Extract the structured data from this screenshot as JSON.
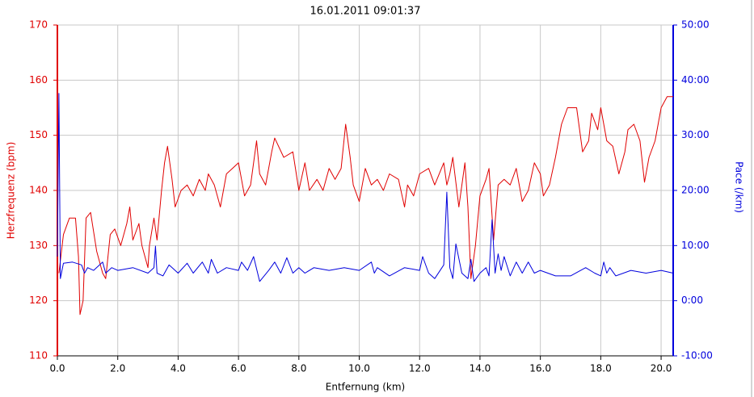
{
  "chart_data": {
    "type": "line",
    "title": "16.01.2011 09:01:37",
    "xlabel": "Entfernung (km)",
    "ylabel": "Herzfrequenz (bpm)",
    "y2label": "Pace (/km)",
    "grid": true,
    "xlim": [
      0,
      20.4
    ],
    "xticks": [
      {
        "value": 0,
        "label": "0.0"
      },
      {
        "value": 2,
        "label": "2.0"
      },
      {
        "value": 4,
        "label": "4.0"
      },
      {
        "value": 6,
        "label": "6.0"
      },
      {
        "value": 8,
        "label": "8.0"
      },
      {
        "value": 10,
        "label": "10.0"
      },
      {
        "value": 12,
        "label": "12.0"
      },
      {
        "value": 14,
        "label": "14.0"
      },
      {
        "value": 16,
        "label": "16.0"
      },
      {
        "value": 18,
        "label": "18.0"
      },
      {
        "value": 20,
        "label": "20.0"
      }
    ],
    "ylim": [
      110,
      170
    ],
    "yticks": [
      110,
      120,
      130,
      140,
      150,
      160,
      170
    ],
    "y2lim": [
      -10,
      50
    ],
    "y2ticks": [
      {
        "value": -10,
        "label": "-10:00"
      },
      {
        "value": 0,
        "label": "0:00"
      },
      {
        "value": 10,
        "label": "10:00"
      },
      {
        "value": 20,
        "label": "20:00"
      },
      {
        "value": 30,
        "label": "30:00"
      },
      {
        "value": 40,
        "label": "40:00"
      },
      {
        "value": 50,
        "label": "50:00"
      }
    ],
    "series": [
      {
        "name": "Herzfrequenz",
        "color": "#e00000",
        "axis": "y",
        "x": [
          0.05,
          0.2,
          0.4,
          0.6,
          0.7,
          0.75,
          0.85,
          0.95,
          1.1,
          1.3,
          1.5,
          1.6,
          1.75,
          1.9,
          2.1,
          2.3,
          2.4,
          2.5,
          2.7,
          2.8,
          3.0,
          3.05,
          3.2,
          3.3,
          3.45,
          3.55,
          3.65,
          3.8,
          3.9,
          4.1,
          4.3,
          4.5,
          4.7,
          4.9,
          5.0,
          5.2,
          5.4,
          5.6,
          5.8,
          6.0,
          6.2,
          6.4,
          6.6,
          6.7,
          6.9,
          7.1,
          7.2,
          7.5,
          7.8,
          8.0,
          8.2,
          8.35,
          8.6,
          8.8,
          9.0,
          9.2,
          9.4,
          9.55,
          9.7,
          9.8,
          10.0,
          10.2,
          10.4,
          10.6,
          10.8,
          11.0,
          11.3,
          11.5,
          11.6,
          11.8,
          12.0,
          12.3,
          12.5,
          12.8,
          12.9,
          13.0,
          13.1,
          13.3,
          13.5,
          13.6,
          13.7,
          13.85,
          14.0,
          14.2,
          14.3,
          14.45,
          14.6,
          14.8,
          15.0,
          15.2,
          15.4,
          15.6,
          15.8,
          16.0,
          16.1,
          16.3,
          16.5,
          16.7,
          16.9,
          17.2,
          17.4,
          17.6,
          17.7,
          17.9,
          18.0,
          18.2,
          18.4,
          18.6,
          18.8,
          18.9,
          19.1,
          19.3,
          19.45,
          19.6,
          19.8,
          20.0,
          20.2,
          20.4
        ],
        "values": [
          125,
          132,
          135,
          135,
          128,
          117.5,
          120,
          135,
          136,
          129,
          125,
          124,
          132,
          133,
          130,
          134,
          137,
          131,
          134,
          130,
          126,
          130,
          135,
          131,
          140,
          145,
          148,
          142,
          137,
          140,
          141,
          139,
          142,
          140,
          143,
          141,
          137,
          143,
          144,
          145,
          139,
          141,
          149,
          143,
          141,
          147,
          149.5,
          146,
          147,
          140,
          145,
          140,
          142,
          140,
          144,
          142,
          144,
          152,
          146,
          141,
          138,
          144,
          141,
          142,
          140,
          143,
          142,
          137,
          141,
          139,
          143,
          144,
          141,
          145,
          141,
          143,
          146,
          137,
          145,
          137,
          124,
          130,
          139,
          142,
          144,
          131,
          141,
          142,
          141,
          144,
          138,
          140,
          145,
          143,
          139,
          141,
          146,
          152,
          155,
          155,
          147,
          149,
          154,
          151,
          155,
          149,
          148,
          143,
          147,
          151,
          152,
          149,
          141.5,
          146,
          149,
          155,
          157,
          157
        ]
      },
      {
        "name": "Pace",
        "color": "#0000dd",
        "axis": "y2",
        "x": [
          0.0,
          0.05,
          0.1,
          0.2,
          0.5,
          0.8,
          0.9,
          1.0,
          1.2,
          1.5,
          1.6,
          1.8,
          2.0,
          2.5,
          3.0,
          3.2,
          3.25,
          3.3,
          3.5,
          3.7,
          4.0,
          4.3,
          4.5,
          4.8,
          5.0,
          5.1,
          5.3,
          5.6,
          6.0,
          6.1,
          6.3,
          6.5,
          6.7,
          7.0,
          7.2,
          7.4,
          7.6,
          7.8,
          8.0,
          8.2,
          8.5,
          9.0,
          9.5,
          10.0,
          10.4,
          10.5,
          10.6,
          11.0,
          11.5,
          12.0,
          12.1,
          12.3,
          12.5,
          12.8,
          12.9,
          13.0,
          13.1,
          13.2,
          13.4,
          13.6,
          13.7,
          13.8,
          14.0,
          14.2,
          14.3,
          14.4,
          14.5,
          14.6,
          14.7,
          14.8,
          15.0,
          15.2,
          15.4,
          15.6,
          15.8,
          16.0,
          16.5,
          17.0,
          17.5,
          17.8,
          18.0,
          18.1,
          18.2,
          18.3,
          18.5,
          19.0,
          19.5,
          20.0,
          20.4
        ],
        "values": [
          8,
          37.6,
          4,
          6.8,
          7,
          6.5,
          5,
          6,
          5.5,
          7,
          5,
          6,
          5.5,
          6,
          5,
          6,
          9.9,
          5,
          4.5,
          6.5,
          5,
          6.8,
          5,
          7,
          5,
          7.5,
          5,
          6,
          5.5,
          7,
          5.5,
          8,
          3.5,
          5.5,
          7,
          5,
          7.8,
          5,
          6,
          5,
          6,
          5.5,
          6,
          5.5,
          7,
          5,
          6,
          4.5,
          6,
          5.5,
          8,
          5,
          4,
          6.5,
          19.7,
          6,
          4,
          10.3,
          5,
          4,
          7.5,
          3.5,
          5,
          6,
          4.5,
          14.7,
          5,
          8.5,
          5.5,
          8,
          4.5,
          7,
          5,
          7,
          5,
          5.5,
          4.5,
          4.5,
          6,
          5,
          4.5,
          7,
          5,
          6,
          4.5,
          5.5,
          5,
          5.5,
          5
        ]
      }
    ]
  }
}
